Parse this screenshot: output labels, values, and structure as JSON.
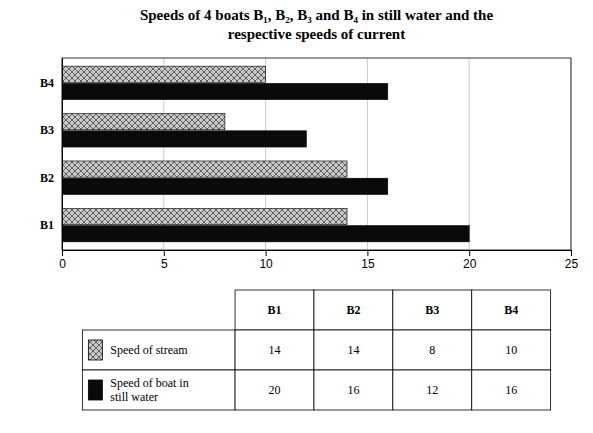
{
  "chart_data": {
    "type": "bar",
    "orientation": "horizontal",
    "title": "Speeds of 4 boats B₁, B₂, B₃ and B₄ in still water and the\nrespective speeds of current",
    "categories": [
      "B1",
      "B2",
      "B3",
      "B4"
    ],
    "series": [
      {
        "name": "Speed of stream",
        "color": "#c8c8c8",
        "values": [
          14,
          14,
          8,
          10
        ]
      },
      {
        "name": "Speed of boat in\nstill water",
        "color": "#0a0a0a",
        "values": [
          20,
          16,
          12,
          16
        ]
      }
    ],
    "xlim": [
      0,
      25
    ],
    "xticks": [
      0,
      5,
      10,
      15,
      20,
      25
    ],
    "grid": true
  }
}
